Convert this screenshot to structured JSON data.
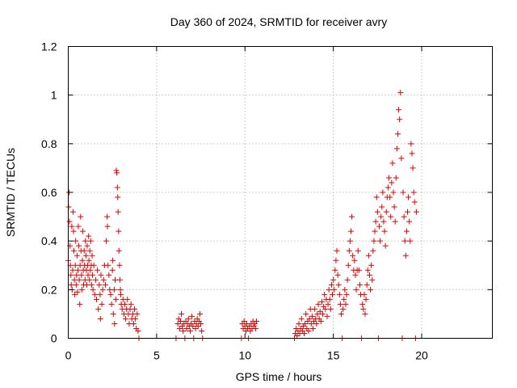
{
  "chart_data": {
    "type": "scatter",
    "title": "Day 360 of 2024, SRMTID for receiver avry",
    "xlabel": "GPS time / hours",
    "ylabel": "SRMTID / TECUs",
    "xlim": [
      0,
      24
    ],
    "ylim": [
      0,
      1.2
    ],
    "xticks": [
      0,
      5,
      10,
      15,
      20
    ],
    "xtick_labels": [
      "0",
      "5",
      "10",
      "15",
      "20"
    ],
    "yticks": [
      0,
      0.2,
      0.4,
      0.6,
      0.8,
      1.0,
      1.2
    ],
    "ytick_labels": [
      "0",
      "0.2",
      "0.4",
      "0.6",
      "0.8",
      "1",
      "1.2"
    ],
    "grid": true,
    "marker": "+",
    "color": "#e00000",
    "series": [
      {
        "name": "SRMTID",
        "points": [
          [
            0.0,
            0.32
          ],
          [
            0.02,
            0.54
          ],
          [
            0.05,
            0.6
          ],
          [
            0.07,
            0.48
          ],
          [
            0.1,
            0.38
          ],
          [
            0.12,
            0.3
          ],
          [
            0.15,
            0.26
          ],
          [
            0.17,
            0.22
          ],
          [
            0.2,
            0.46
          ],
          [
            0.22,
            0.2
          ],
          [
            0.25,
            0.28
          ],
          [
            0.27,
            0.52
          ],
          [
            0.3,
            0.44
          ],
          [
            0.32,
            0.36
          ],
          [
            0.35,
            0.24
          ],
          [
            0.37,
            0.18
          ],
          [
            0.4,
            0.3
          ],
          [
            0.42,
            0.4
          ],
          [
            0.45,
            0.22
          ],
          [
            0.47,
            0.26
          ],
          [
            0.5,
            0.34
          ],
          [
            0.52,
            0.19
          ],
          [
            0.55,
            0.28
          ],
          [
            0.57,
            0.46
          ],
          [
            0.6,
            0.38
          ],
          [
            0.62,
            0.24
          ],
          [
            0.65,
            0.14
          ],
          [
            0.67,
            0.3
          ],
          [
            0.7,
            0.5
          ],
          [
            0.72,
            0.36
          ],
          [
            0.75,
            0.26
          ],
          [
            0.77,
            0.2
          ],
          [
            0.8,
            0.32
          ],
          [
            0.82,
            0.44
          ],
          [
            0.85,
            0.28
          ],
          [
            0.87,
            0.22
          ],
          [
            0.9,
            0.36
          ],
          [
            0.92,
            0.3
          ],
          [
            0.95,
            0.24
          ],
          [
            0.97,
            0.4
          ],
          [
            1.0,
            0.34
          ],
          [
            1.02,
            0.28
          ],
          [
            1.05,
            0.22
          ],
          [
            1.07,
            0.38
          ],
          [
            1.1,
            0.3
          ],
          [
            1.12,
            0.26
          ],
          [
            1.15,
            0.42
          ],
          [
            1.17,
            0.32
          ],
          [
            1.2,
            0.24
          ],
          [
            1.22,
            0.36
          ],
          [
            1.25,
            0.28
          ],
          [
            1.27,
            0.4
          ],
          [
            1.3,
            0.3
          ],
          [
            1.32,
            0.22
          ],
          [
            1.35,
            0.34
          ],
          [
            1.37,
            0.26
          ],
          [
            1.4,
            0.2
          ],
          [
            1.45,
            0.3
          ],
          [
            1.5,
            0.18
          ],
          [
            1.55,
            0.24
          ],
          [
            1.6,
            0.16
          ],
          [
            1.65,
            0.28
          ],
          [
            1.7,
            0.12
          ],
          [
            1.75,
            0.22
          ],
          [
            1.8,
            0.18
          ],
          [
            1.82,
            0.08
          ],
          [
            1.85,
            0.26
          ],
          [
            1.9,
            0.14
          ],
          [
            1.95,
            0.2
          ],
          [
            2.0,
            0.24
          ],
          [
            2.05,
            0.3
          ],
          [
            2.1,
            0.22
          ],
          [
            2.15,
            0.4
          ],
          [
            2.2,
            0.5
          ],
          [
            2.22,
            0.46
          ],
          [
            2.25,
            0.3
          ],
          [
            2.3,
            0.26
          ],
          [
            2.35,
            0.2
          ],
          [
            2.4,
            0.18
          ],
          [
            2.45,
            0.14
          ],
          [
            2.5,
            0.28
          ],
          [
            2.52,
            0.32
          ],
          [
            2.55,
            0.1
          ],
          [
            2.6,
            0.2
          ],
          [
            2.62,
            0.06
          ],
          [
            2.65,
            0.24
          ],
          [
            2.7,
            0.16
          ],
          [
            2.72,
            0.69
          ],
          [
            2.75,
            0.68
          ],
          [
            2.78,
            0.62
          ],
          [
            2.8,
            0.58
          ],
          [
            2.82,
            0.52
          ],
          [
            2.85,
            0.44
          ],
          [
            2.87,
            0.36
          ],
          [
            2.9,
            0.3
          ],
          [
            2.92,
            0.24
          ],
          [
            2.95,
            0.2
          ],
          [
            2.97,
            0.18
          ],
          [
            3.0,
            0.14
          ],
          [
            3.05,
            0.12
          ],
          [
            3.1,
            0.16
          ],
          [
            3.15,
            0.1
          ],
          [
            3.2,
            0.14
          ],
          [
            3.25,
            0.08
          ],
          [
            3.3,
            0.12
          ],
          [
            3.35,
            0.16
          ],
          [
            3.4,
            0.1
          ],
          [
            3.45,
            0.06
          ],
          [
            3.5,
            0.12
          ],
          [
            3.55,
            0.14
          ],
          [
            3.6,
            0.08
          ],
          [
            3.65,
            0.1
          ],
          [
            3.7,
            0.06
          ],
          [
            3.75,
            0.12
          ],
          [
            3.8,
            0.08
          ],
          [
            3.85,
            0.04
          ],
          [
            3.9,
            0.1
          ],
          [
            3.95,
            0.03
          ],
          [
            4.0,
            0.0
          ],
          [
            6.1,
            0.0
          ],
          [
            6.2,
            0.06
          ],
          [
            6.25,
            0.08
          ],
          [
            6.3,
            0.04
          ],
          [
            6.35,
            0.07
          ],
          [
            6.4,
            0.1
          ],
          [
            6.45,
            0.05
          ],
          [
            6.5,
            0.03
          ],
          [
            6.55,
            0.06
          ],
          [
            6.6,
            0.0
          ],
          [
            6.65,
            0.07
          ],
          [
            6.7,
            0.04
          ],
          [
            6.75,
            0.06
          ],
          [
            6.8,
            0.08
          ],
          [
            6.85,
            0.05
          ],
          [
            6.9,
            0.03
          ],
          [
            6.95,
            0.06
          ],
          [
            7.0,
            0.09
          ],
          [
            7.05,
            0.05
          ],
          [
            7.1,
            0.0
          ],
          [
            7.15,
            0.07
          ],
          [
            7.2,
            0.04
          ],
          [
            7.25,
            0.06
          ],
          [
            7.3,
            0.08
          ],
          [
            7.35,
            0.05
          ],
          [
            7.4,
            0.07
          ],
          [
            7.45,
            0.1
          ],
          [
            7.5,
            0.06
          ],
          [
            7.55,
            0.03
          ],
          [
            7.6,
            0.0
          ],
          [
            9.8,
            0.0
          ],
          [
            9.85,
            0.06
          ],
          [
            9.9,
            0.04
          ],
          [
            9.95,
            0.07
          ],
          [
            10.0,
            0.05
          ],
          [
            10.05,
            0.03
          ],
          [
            10.1,
            0.06
          ],
          [
            10.15,
            0.04
          ],
          [
            10.2,
            0.0
          ],
          [
            10.25,
            0.05
          ],
          [
            10.3,
            0.03
          ],
          [
            10.35,
            0.06
          ],
          [
            10.4,
            0.04
          ],
          [
            10.45,
            0.07
          ],
          [
            10.5,
            0.05
          ],
          [
            10.55,
            0.06
          ],
          [
            10.6,
            0.04
          ],
          [
            10.65,
            0.07
          ],
          [
            12.8,
            0.0
          ],
          [
            12.85,
            0.02
          ],
          [
            12.9,
            0.04
          ],
          [
            12.95,
            0.01
          ],
          [
            13.0,
            0.03
          ],
          [
            13.05,
            0.06
          ],
          [
            13.1,
            0.02
          ],
          [
            13.15,
            0.04
          ],
          [
            13.2,
            0.08
          ],
          [
            13.25,
            0.03
          ],
          [
            13.3,
            0.05
          ],
          [
            13.35,
            0.02
          ],
          [
            13.4,
            0.06
          ],
          [
            13.45,
            0.1
          ],
          [
            13.5,
            0.04
          ],
          [
            13.55,
            0.07
          ],
          [
            13.6,
            0.03
          ],
          [
            13.65,
            0.08
          ],
          [
            13.7,
            0.12
          ],
          [
            13.75,
            0.06
          ],
          [
            13.8,
            0.09
          ],
          [
            13.85,
            0.04
          ],
          [
            13.9,
            0.07
          ],
          [
            13.95,
            0.12
          ],
          [
            14.0,
            0.08
          ],
          [
            14.05,
            0.06
          ],
          [
            14.1,
            0.1
          ],
          [
            14.15,
            0.14
          ],
          [
            14.2,
            0.08
          ],
          [
            14.25,
            0.11
          ],
          [
            14.3,
            0.07
          ],
          [
            14.35,
            0.15
          ],
          [
            14.4,
            0.1
          ],
          [
            14.45,
            0.13
          ],
          [
            14.5,
            0.18
          ],
          [
            14.55,
            0.12
          ],
          [
            14.6,
            0.16
          ],
          [
            14.65,
            0.09
          ],
          [
            14.7,
            0.14
          ],
          [
            14.75,
            0.2
          ],
          [
            14.8,
            0.16
          ],
          [
            14.85,
            0.12
          ],
          [
            14.9,
            0.22
          ],
          [
            14.95,
            0.18
          ],
          [
            15.0,
            0.24
          ],
          [
            15.05,
            0.2
          ],
          [
            15.1,
            0.28
          ],
          [
            15.15,
            0.32
          ],
          [
            15.2,
            0.36
          ],
          [
            15.25,
            0.26
          ],
          [
            15.3,
            0.22
          ],
          [
            15.35,
            0.18
          ],
          [
            15.4,
            0.14
          ],
          [
            15.45,
            0.1
          ],
          [
            15.5,
            0.0
          ],
          [
            15.55,
            0.12
          ],
          [
            15.6,
            0.16
          ],
          [
            15.65,
            0.2
          ],
          [
            15.7,
            0.14
          ],
          [
            15.75,
            0.18
          ],
          [
            15.8,
            0.24
          ],
          [
            15.85,
            0.3
          ],
          [
            15.9,
            0.36
          ],
          [
            15.95,
            0.4
          ],
          [
            16.0,
            0.44
          ],
          [
            16.05,
            0.5
          ],
          [
            16.1,
            0.34
          ],
          [
            16.15,
            0.28
          ],
          [
            16.2,
            0.32
          ],
          [
            16.25,
            0.26
          ],
          [
            16.3,
            0.2
          ],
          [
            16.35,
            0.28
          ],
          [
            16.4,
            0.36
          ],
          [
            16.45,
            0.28
          ],
          [
            16.5,
            0.22
          ],
          [
            16.55,
            0.18
          ],
          [
            16.6,
            0.0
          ],
          [
            16.65,
            0.14
          ],
          [
            16.7,
            0.12
          ],
          [
            16.75,
            0.18
          ],
          [
            16.8,
            0.1
          ],
          [
            16.85,
            0.16
          ],
          [
            16.9,
            0.22
          ],
          [
            16.95,
            0.28
          ],
          [
            17.0,
            0.34
          ],
          [
            17.05,
            0.26
          ],
          [
            17.1,
            0.2
          ],
          [
            17.15,
            0.3
          ],
          [
            17.2,
            0.24
          ],
          [
            17.25,
            0.36
          ],
          [
            17.3,
            0.4
          ],
          [
            17.35,
            0.44
          ],
          [
            17.4,
            0.48
          ],
          [
            17.45,
            0.58
          ],
          [
            17.5,
            0.52
          ],
          [
            17.55,
            0.0
          ],
          [
            17.6,
            0.46
          ],
          [
            17.65,
            0.4
          ],
          [
            17.7,
            0.5
          ],
          [
            17.75,
            0.54
          ],
          [
            17.8,
            0.6
          ],
          [
            17.85,
            0.48
          ],
          [
            17.9,
            0.44
          ],
          [
            17.95,
            0.38
          ],
          [
            18.0,
            0.52
          ],
          [
            18.05,
            0.58
          ],
          [
            18.1,
            0.62
          ],
          [
            18.15,
            0.66
          ],
          [
            18.2,
            0.58
          ],
          [
            18.25,
            0.5
          ],
          [
            18.3,
            0.64
          ],
          [
            18.35,
            0.72
          ],
          [
            18.4,
            0.6
          ],
          [
            18.45,
            0.54
          ],
          [
            18.5,
            0.48
          ],
          [
            18.55,
            0.66
          ],
          [
            18.6,
            0.78
          ],
          [
            18.65,
            0.84
          ],
          [
            18.7,
            0.94
          ],
          [
            18.75,
            0.9
          ],
          [
            18.8,
            1.01
          ],
          [
            18.85,
            0.74
          ],
          [
            18.9,
            0.0
          ],
          [
            18.95,
            0.6
          ],
          [
            19.0,
            0.5
          ],
          [
            19.05,
            0.4
          ],
          [
            19.1,
            0.34
          ],
          [
            19.15,
            0.44
          ],
          [
            19.2,
            0.52
          ],
          [
            19.25,
            0.58
          ],
          [
            19.3,
            0.48
          ],
          [
            19.35,
            0.4
          ],
          [
            19.4,
            0.8
          ],
          [
            19.45,
            0.76
          ],
          [
            19.5,
            0.7
          ],
          [
            19.55,
            0.6
          ],
          [
            19.6,
            0.56
          ],
          [
            19.65,
            0.0
          ],
          [
            19.7,
            0.52
          ]
        ]
      }
    ]
  }
}
